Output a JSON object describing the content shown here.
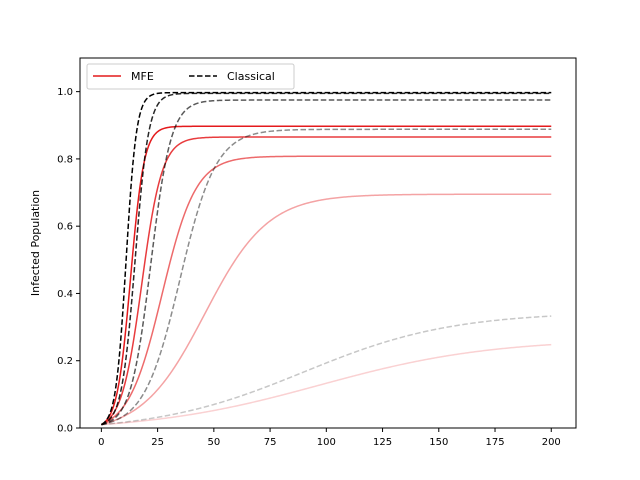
{
  "chart_data": {
    "type": "line",
    "title": "",
    "xlabel": "",
    "ylabel": "Infected Population",
    "xlim": [
      -9.5,
      211
    ],
    "ylim": [
      0,
      1.1
    ],
    "xticks": [
      0,
      25,
      50,
      75,
      100,
      125,
      150,
      175,
      200
    ],
    "yticks": [
      0.0,
      0.2,
      0.4,
      0.6,
      0.8,
      1.0
    ],
    "grid": false,
    "legend": {
      "placement": "top-left",
      "entries": [
        {
          "label": "MFE",
          "color": "#e41a1c",
          "style": "solid"
        },
        {
          "label": "Classical",
          "color": "#000000",
          "style": "dashed"
        }
      ]
    },
    "series": [
      {
        "group": "MFE",
        "color": "#e41a1c",
        "opacity": 1.0,
        "style": "solid",
        "plateau": 0.897,
        "midpoint": 13,
        "width": 3.0
      },
      {
        "group": "MFE",
        "color": "#e41a1c",
        "opacity": 0.85,
        "style": "solid",
        "plateau": 0.865,
        "midpoint": 18,
        "width": 4.5
      },
      {
        "group": "MFE",
        "color": "#e41a1c",
        "opacity": 0.65,
        "style": "solid",
        "plateau": 0.808,
        "midpoint": 27,
        "width": 7.5
      },
      {
        "group": "MFE",
        "color": "#e41a1c",
        "opacity": 0.4,
        "style": "solid",
        "plateau": 0.695,
        "midpoint": 46,
        "width": 14
      },
      {
        "group": "MFE",
        "color": "#e41a1c",
        "opacity": 0.2,
        "style": "solid",
        "plateau": 0.265,
        "midpoint": 97,
        "width": 38
      },
      {
        "group": "Classical",
        "color": "#000000",
        "opacity": 1.0,
        "style": "dashed",
        "plateau": 0.997,
        "midpoint": 11,
        "width": 2.3
      },
      {
        "group": "Classical",
        "color": "#000000",
        "opacity": 0.85,
        "style": "dashed",
        "plateau": 0.995,
        "midpoint": 15,
        "width": 3.0
      },
      {
        "group": "Classical",
        "color": "#000000",
        "opacity": 0.65,
        "style": "dashed",
        "plateau": 0.975,
        "midpoint": 22,
        "width": 4.5
      },
      {
        "group": "Classical",
        "color": "#000000",
        "opacity": 0.45,
        "style": "dashed",
        "plateau": 0.888,
        "midpoint": 35,
        "width": 8
      },
      {
        "group": "Classical",
        "color": "#000000",
        "opacity": 0.22,
        "style": "dashed",
        "plateau": 0.345,
        "midpoint": 90,
        "width": 33
      }
    ]
  }
}
